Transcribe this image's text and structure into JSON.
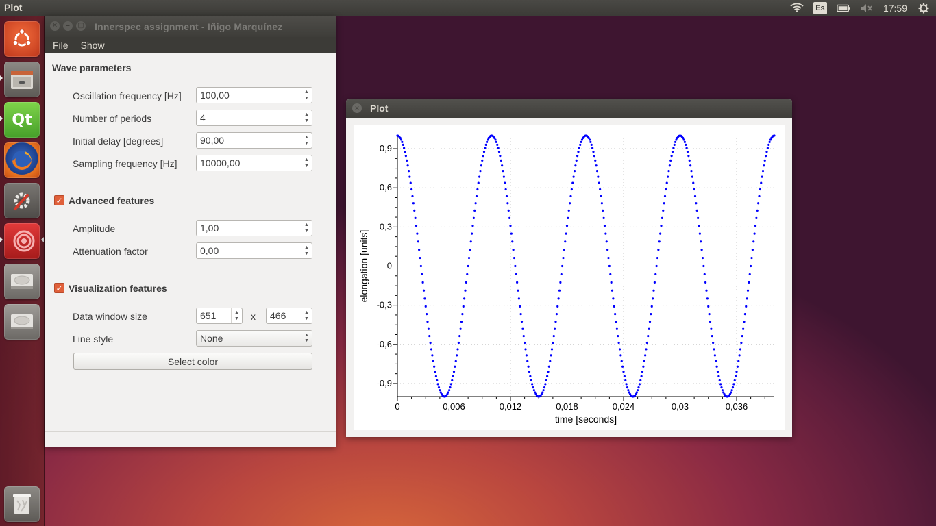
{
  "top_panel": {
    "app_title": "Plot",
    "keyboard_layout": "Es",
    "clock": "17:59"
  },
  "launcher": {
    "items": [
      "ubuntu-dash",
      "files",
      "qt-creator",
      "firefox",
      "system-settings",
      "plot-app",
      "disk-drive",
      "disk-drive",
      "trash"
    ]
  },
  "main_window": {
    "title": "Innerspec assignment - Iñigo Marquínez",
    "menu": {
      "file": "File",
      "show": "Show"
    },
    "wave": {
      "title": "Wave parameters",
      "osc_label": "Oscillation frequency [Hz]",
      "osc_value": "100,00",
      "periods_label": "Number of periods",
      "periods_value": "4",
      "delay_label": "Initial delay [degrees]",
      "delay_value": "90,00",
      "sampling_label": "Sampling frequency [Hz]",
      "sampling_value": "10000,00"
    },
    "advanced": {
      "title": "Advanced features",
      "checked": true,
      "amplitude_label": "Amplitude",
      "amplitude_value": "1,00",
      "attenuation_label": "Attenuation factor",
      "attenuation_value": "0,00"
    },
    "visual": {
      "title": "Visualization features",
      "checked": true,
      "window_label": "Data window size",
      "width_value": "651",
      "times": "x",
      "height_value": "466",
      "line_style_label": "Line style",
      "line_style_value": "None",
      "select_color": "Select color"
    }
  },
  "plot_window": {
    "title": "Plot"
  },
  "chart_data": {
    "type": "scatter",
    "xlabel": "time [seconds]",
    "ylabel": "elongation [units]",
    "x_ticks": [
      "0",
      "0,006",
      "0,012",
      "0,018",
      "0,024",
      "0,03",
      "0,036"
    ],
    "y_ticks": [
      "0,9",
      "0,6",
      "0,3",
      "0",
      "-0,3",
      "-0,6",
      "-0,9"
    ],
    "xlim": [
      0,
      0.04
    ],
    "ylim": [
      -1,
      1
    ],
    "grid": true,
    "marker_color": "#0000ff",
    "series": [
      {
        "function": "amplitude * cos(2*pi*frequency*t)",
        "amplitude": 1,
        "frequency_hz": 100,
        "phase_deg": 90,
        "periods": 4,
        "sampling_hz": 10000
      }
    ]
  }
}
